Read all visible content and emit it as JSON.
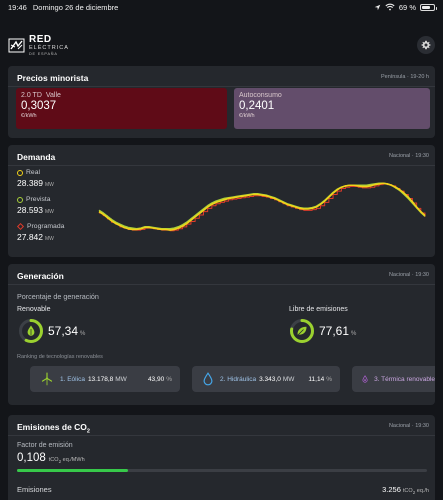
{
  "status_bar": {
    "time": "19:46",
    "date": "Domingo 26 de diciembre",
    "battery": "69 %",
    "battery_level": 0.69
  },
  "header": {
    "logo": {
      "line1": "RED",
      "line2": "ELÉCTRICA",
      "line3": "DE ESPAÑA"
    },
    "settings_icon": "gear-icon"
  },
  "precios": {
    "title": "Precios minorista",
    "meta": "Península · 19-20 h",
    "valle": {
      "label": "2.0 TD",
      "tag": "Valle",
      "value": "0,3037",
      "unit": "€/kWh",
      "color": "#5f0b17"
    },
    "autoconsumo": {
      "label": "Autoconsumo",
      "value": "0,2401",
      "unit": "€/kWh",
      "color": "#634d6b"
    }
  },
  "demanda": {
    "title": "Demanda",
    "meta": "Nacional · 19:30",
    "legend": [
      {
        "label": "Real",
        "value": "28.389",
        "unit": "MW",
        "color": "#f2d21a"
      },
      {
        "label": "Prevista",
        "value": "28.593",
        "unit": "MW",
        "color": "#a8d13a"
      },
      {
        "label": "Programada",
        "value": "27.842",
        "unit": "MW",
        "color": "#e03a2a"
      }
    ]
  },
  "chart_data": {
    "type": "line",
    "title": "Demanda",
    "x": [
      0,
      1,
      2,
      3,
      4,
      5,
      6,
      7,
      8,
      9,
      10,
      11,
      12,
      13,
      14,
      15,
      16,
      17,
      18,
      19,
      20,
      21,
      22,
      23,
      24,
      25,
      26,
      27,
      28,
      29,
      30,
      31,
      32,
      33,
      34,
      35,
      36,
      37,
      38,
      39,
      40,
      41,
      42,
      43,
      44,
      45,
      46,
      47,
      48,
      49,
      50,
      51,
      52,
      53,
      54,
      55,
      56,
      57,
      58,
      59,
      60,
      61,
      62,
      63,
      64,
      65,
      66,
      67,
      68,
      69,
      70,
      71,
      72,
      73,
      74,
      75,
      76,
      77,
      78
    ],
    "ylim": [
      0,
      100
    ],
    "series": [
      {
        "name": "Real",
        "color": "#f2d21a",
        "values": [
          46,
          42,
          37,
          32,
          28,
          25,
          22,
          20,
          19,
          19,
          20,
          22,
          22,
          21,
          20,
          19,
          19,
          18,
          19,
          21,
          24,
          28,
          33,
          38,
          43,
          48,
          53,
          57,
          60,
          62,
          64,
          66,
          67,
          68,
          69,
          70,
          71,
          72,
          72,
          71,
          70,
          68,
          66,
          63,
          60,
          57,
          55,
          53,
          51,
          50,
          50,
          51,
          53,
          57,
          62,
          68,
          74,
          79,
          83,
          85,
          86,
          86,
          85,
          84,
          84,
          85,
          87,
          88,
          89,
          88,
          86,
          83,
          79,
          74,
          68,
          61,
          53,
          46,
          40
        ]
      },
      {
        "name": "Prevista",
        "color": "#a8d13a",
        "values": [
          48,
          44,
          39,
          34,
          30,
          27,
          24,
          22,
          21,
          20,
          21,
          23,
          23,
          22,
          21,
          20,
          20,
          20,
          21,
          23,
          26,
          30,
          35,
          40,
          45,
          50,
          55,
          59,
          62,
          64,
          66,
          67,
          68,
          69,
          70,
          71,
          72,
          73,
          73,
          72,
          71,
          69,
          67,
          64,
          61,
          58,
          56,
          54,
          52,
          51,
          51,
          52,
          54,
          58,
          63,
          69,
          75,
          80,
          83,
          85,
          86,
          86,
          86,
          86,
          86,
          87,
          88,
          89,
          89,
          88,
          86,
          82,
          78,
          72,
          66,
          59,
          52,
          45,
          39
        ]
      },
      {
        "name": "Programada",
        "color": "#e03a2a",
        "values": [
          44,
          40,
          35,
          30,
          27,
          23,
          21,
          19,
          18,
          18,
          19,
          21,
          21,
          20,
          19,
          18,
          18,
          17,
          18,
          20,
          23,
          27,
          31,
          36,
          41,
          46,
          51,
          55,
          58,
          60,
          62,
          64,
          65,
          66,
          67,
          68,
          69,
          70,
          70,
          69,
          68,
          66,
          64,
          61,
          58,
          55,
          53,
          51,
          49,
          48,
          48,
          49,
          51,
          55,
          60,
          66,
          72,
          77,
          81,
          83,
          84,
          84,
          83,
          82,
          82,
          83,
          85,
          87,
          88,
          87,
          85,
          81,
          77,
          72,
          66,
          59,
          51,
          44,
          38
        ]
      }
    ]
  },
  "generacion": {
    "title": "Generación",
    "meta": "Nacional · 19:30",
    "subtitle": "Porcentaje de generación",
    "renovable": {
      "label": "Renovable",
      "value": "57,34",
      "unit": "%",
      "fraction": 0.5734,
      "icon": "leaf-drop-icon"
    },
    "libre": {
      "label": "Libre de emisiones",
      "value": "77,61",
      "unit": "%",
      "fraction": 0.7761,
      "icon": "leaf-icon"
    },
    "ranking_title": "Ranking de tecnologías renovables",
    "ranking": [
      {
        "name": "1. Eólica",
        "value": "13.178,8",
        "unit": "MW",
        "pct": "43,90",
        "icon": "wind-turbine-icon"
      },
      {
        "name": "2. Hidráulica",
        "value": "3.343,0",
        "unit": "MW",
        "pct": "11,14",
        "icon": "water-drop-icon"
      },
      {
        "name": "3. Térmica renovable",
        "icon": "thermal-drop-icon"
      }
    ]
  },
  "emisiones": {
    "title_main": "Emisiones de CO",
    "title_sub": "2",
    "meta": "Nacional · 19:30",
    "factor_label": "Factor de emisión",
    "factor_value": "0,108",
    "factor_unit_a": "tCO",
    "factor_unit_sub": "2",
    "factor_unit_b": " eq./MWh",
    "factor_fraction": 0.27,
    "bottom_label": "Emisiones",
    "bottom_value": "3.256",
    "bottom_unit_a": "tCO",
    "bottom_unit_sub": "2",
    "bottom_unit_b": " eq./h"
  }
}
